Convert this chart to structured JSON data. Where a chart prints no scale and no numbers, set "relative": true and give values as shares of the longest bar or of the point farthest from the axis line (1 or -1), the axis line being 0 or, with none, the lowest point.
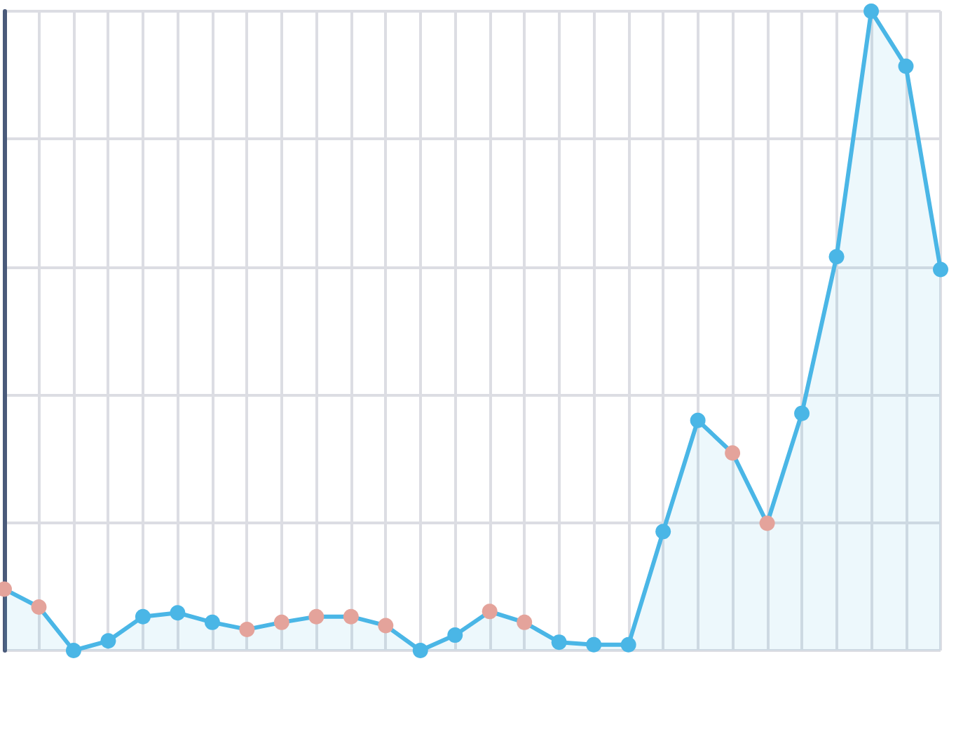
{
  "chart_data": {
    "type": "area",
    "relative": true,
    "grid": true,
    "marker": "circle",
    "line_style": "solid",
    "categories": [
      null,
      null,
      null,
      null,
      null,
      null,
      null,
      null,
      null,
      null,
      null,
      null,
      null,
      null,
      null,
      null,
      null,
      null,
      null,
      null,
      null,
      null,
      null,
      null,
      null,
      null,
      null,
      null
    ],
    "series": [
      {
        "color": "#4ab6e6",
        "values": [
          0.096,
          0.068,
          0,
          0.015,
          0.053,
          0.059,
          0.044,
          0.033,
          0.044,
          0.053,
          0.053,
          0.039,
          0,
          0.024,
          0.061,
          0.044,
          0.013,
          0.009,
          0.009,
          0.186,
          0.36,
          0.309,
          0.199,
          0.371,
          0.616,
          1,
          0.914,
          0.596
        ],
        "colors": [
          "#e4a39b",
          "#e4a39b",
          "#4ab6e6",
          "#4ab6e6",
          "#4ab6e6",
          "#4ab6e6",
          "#4ab6e6",
          "#e4a39b",
          "#e4a39b",
          "#e4a39b",
          "#e4a39b",
          "#e4a39b",
          "#4ab6e6",
          "#4ab6e6",
          "#e4a39b",
          "#e4a39b",
          "#4ab6e6",
          "#4ab6e6",
          "#4ab6e6",
          "#4ab6e6",
          "#4ab6e6",
          "#e4a39b",
          "#e4a39b",
          "#4ab6e6",
          "#4ab6e6",
          "#4ab6e6",
          "#4ab6e6",
          "#4ab6e6"
        ]
      }
    ]
  }
}
